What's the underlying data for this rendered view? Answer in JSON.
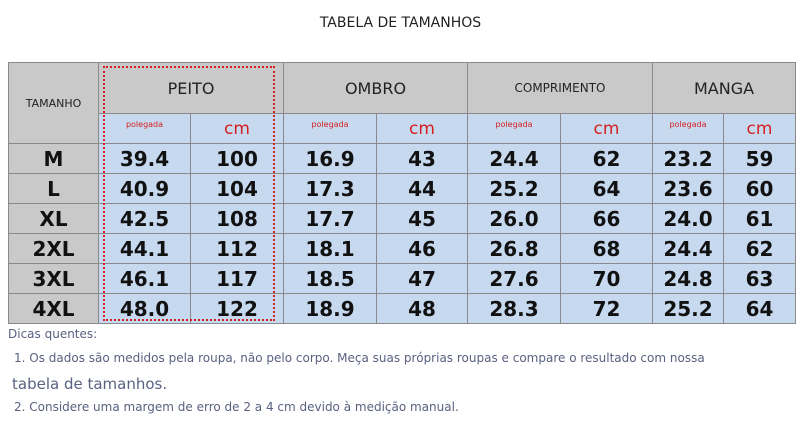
{
  "title": "TABELA DE TAMANHOS",
  "table": {
    "size_header": "TAMANHO",
    "groups": [
      "PEITO",
      "OMBRO",
      "COMPRIMENTO",
      "MANGA"
    ],
    "units": [
      "polegada",
      "cm"
    ],
    "rows": [
      [
        "M",
        "39.4",
        "100",
        "16.9",
        "43",
        "24.4",
        "62",
        "23.2",
        "59"
      ],
      [
        "L",
        "40.9",
        "104",
        "17.3",
        "44",
        "25.2",
        "64",
        "23.6",
        "60"
      ],
      [
        "XL",
        "42.5",
        "108",
        "17.7",
        "45",
        "26.0",
        "66",
        "24.0",
        "61"
      ],
      [
        "2XL",
        "44.1",
        "112",
        "18.1",
        "46",
        "26.8",
        "68",
        "24.4",
        "62"
      ],
      [
        "3XL",
        "46.1",
        "117",
        "18.5",
        "47",
        "27.6",
        "70",
        "24.8",
        "63"
      ],
      [
        "4XL",
        "48.0",
        "122",
        "18.9",
        "48",
        "28.3",
        "72",
        "25.2",
        "64"
      ]
    ]
  },
  "notes": {
    "heading": "Dicas quentes:",
    "items": [
      [
        "1. Os dados são medidos pela roupa, não pelo corpo. Meça suas próprias roupas e compare o resultado com nossa",
        "tabela de tamanhos."
      ],
      "2. Considere uma margem de erro de 2 a 4 cm devido à medição manual."
    ]
  }
}
